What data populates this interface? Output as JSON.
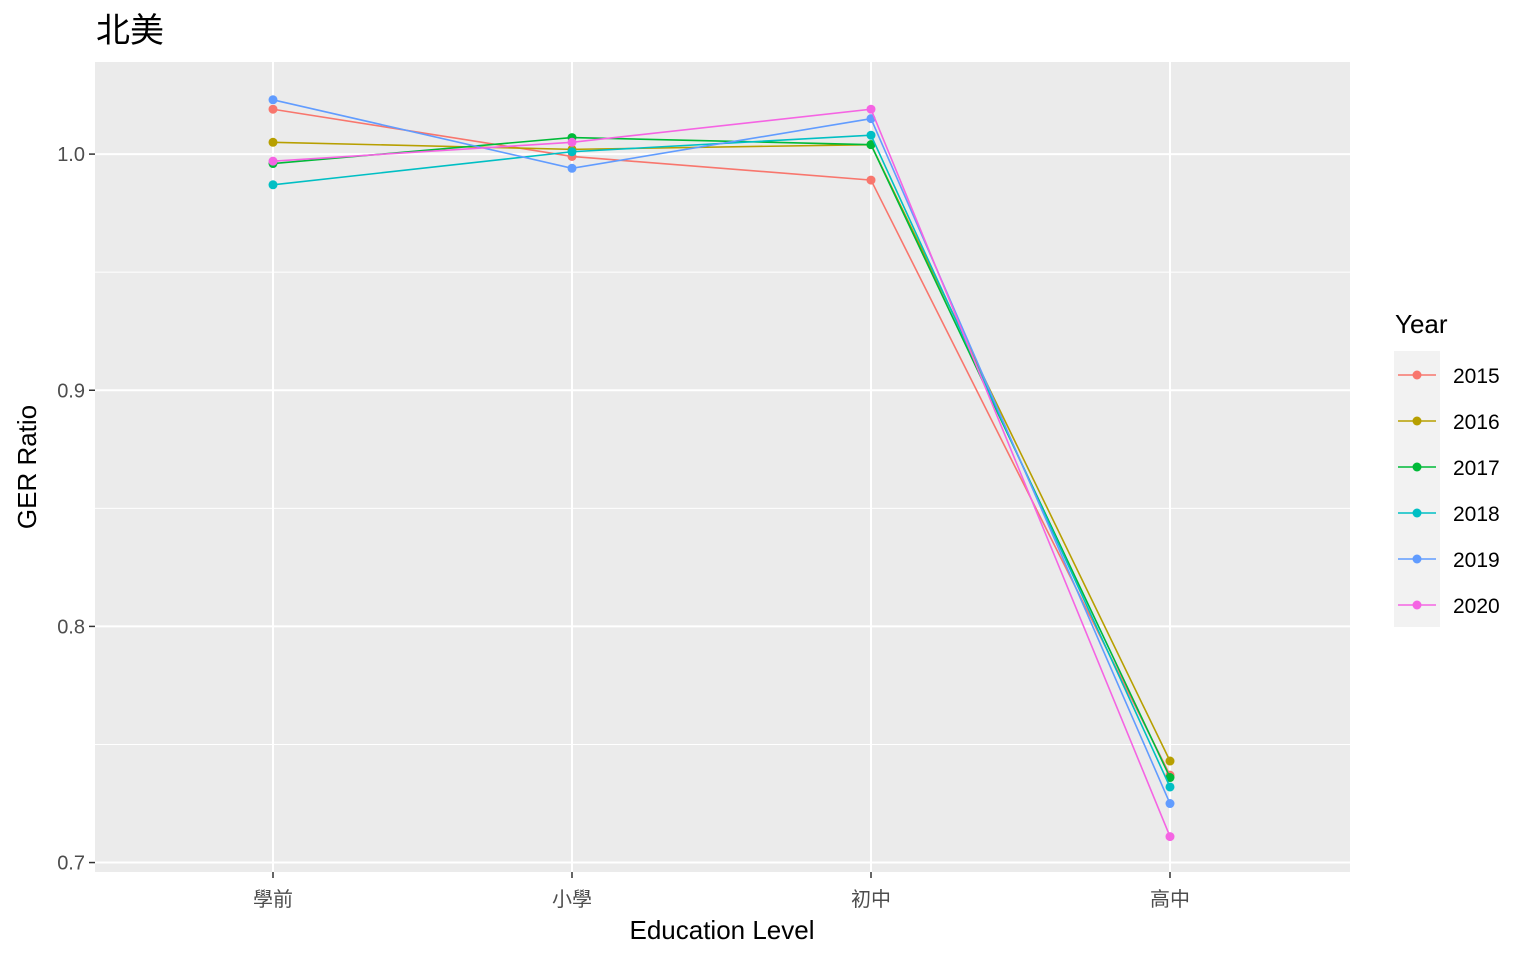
{
  "chart_data": {
    "type": "line",
    "title": "北美",
    "xlabel": "Education Level",
    "ylabel": "GER Ratio",
    "categories": [
      "學前",
      "小學",
      "初中",
      "高中"
    ],
    "ylim": [
      0.696,
      1.039
    ],
    "yticks": [
      0.7,
      0.8,
      0.9,
      1.0
    ],
    "ytick_labels": [
      "0.7",
      "0.8",
      "0.9",
      "1.0"
    ],
    "grid": true,
    "legend": {
      "title": "Year",
      "position": "right"
    },
    "series": [
      {
        "name": "2015",
        "color": "#F8766D",
        "values": [
          1.019,
          0.999,
          0.989,
          0.737
        ]
      },
      {
        "name": "2016",
        "color": "#B79F00",
        "values": [
          1.005,
          1.002,
          1.004,
          0.743
        ]
      },
      {
        "name": "2017",
        "color": "#00BA38",
        "values": [
          0.996,
          1.007,
          1.004,
          0.736
        ]
      },
      {
        "name": "2018",
        "color": "#00BFC4",
        "values": [
          0.987,
          1.001,
          1.008,
          0.732
        ]
      },
      {
        "name": "2019",
        "color": "#619CFF",
        "values": [
          1.023,
          0.994,
          1.015,
          0.725
        ]
      },
      {
        "name": "2020",
        "color": "#F564E3",
        "values": [
          0.997,
          1.005,
          1.019,
          0.711
        ]
      }
    ]
  }
}
